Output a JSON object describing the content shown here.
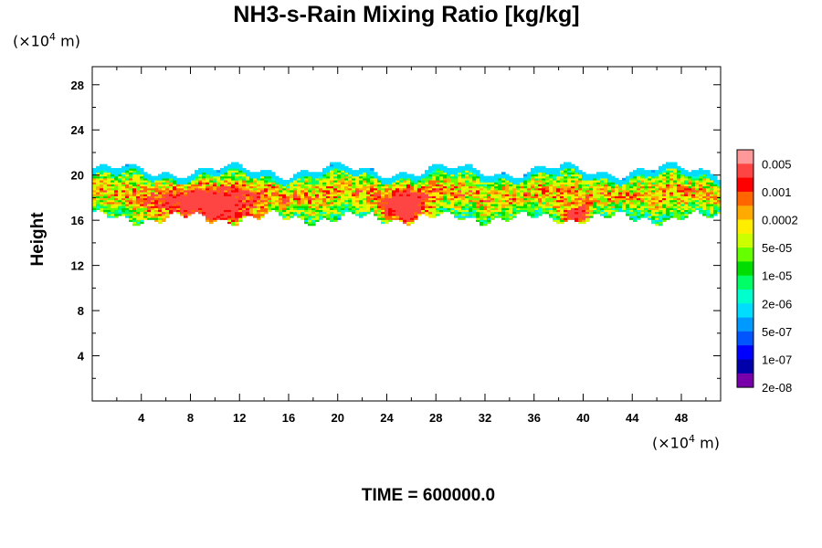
{
  "title": "NH3-s-Rain Mixing Ratio [kg/kg]",
  "y_unit": {
    "prefix": "(×10",
    "exp": "4",
    "suffix": " m)"
  },
  "x_unit": {
    "prefix": "(×10",
    "exp": "4",
    "suffix": " m)"
  },
  "ylabel": "Height",
  "time_label": "TIME = 600000.0",
  "chart_data": {
    "type": "heatmap",
    "title": "NH3-s-Rain Mixing Ratio [kg/kg]",
    "xlabel": "(×10^4 m)",
    "ylabel": "Height (×10^4 m)",
    "xlim": [
      0,
      51.2
    ],
    "ylim": [
      0,
      29.6
    ],
    "x_ticks": [
      4,
      8,
      12,
      16,
      20,
      24,
      28,
      32,
      36,
      40,
      44,
      48
    ],
    "y_ticks": [
      4,
      8,
      12,
      16,
      20,
      24,
      28
    ],
    "colorbar": {
      "labels": [
        "0.005",
        "0.001",
        "0.0002",
        "5e-05",
        "1e-05",
        "2e-06",
        "5e-07",
        "1e-07",
        "2e-08"
      ],
      "colors_top_to_bottom": [
        "#ff9999",
        "#ff4444",
        "#ff0000",
        "#ff6600",
        "#ffaa00",
        "#ffee00",
        "#ccff00",
        "#66ff00",
        "#00dd00",
        "#00ff66",
        "#00ffcc",
        "#00ddff",
        "#0099ff",
        "#0055ff",
        "#0000ff",
        "#0000aa",
        "#7700aa"
      ]
    },
    "band": {
      "y_range_approx": [
        15,
        21
      ],
      "x_range_approx": [
        0,
        51.2
      ],
      "peak_regions": [
        {
          "x_range": [
            4,
            15
          ],
          "y_range": [
            15.5,
            18.5
          ],
          "level": "0.001"
        },
        {
          "x_range": [
            23,
            28
          ],
          "y_range": [
            15.5,
            18.5
          ],
          "level": "0.001"
        },
        {
          "x_range": [
            38,
            41
          ],
          "y_range": [
            15.8,
            17
          ],
          "level": "0.001"
        }
      ]
    },
    "grid": false,
    "legend_position": "right"
  }
}
